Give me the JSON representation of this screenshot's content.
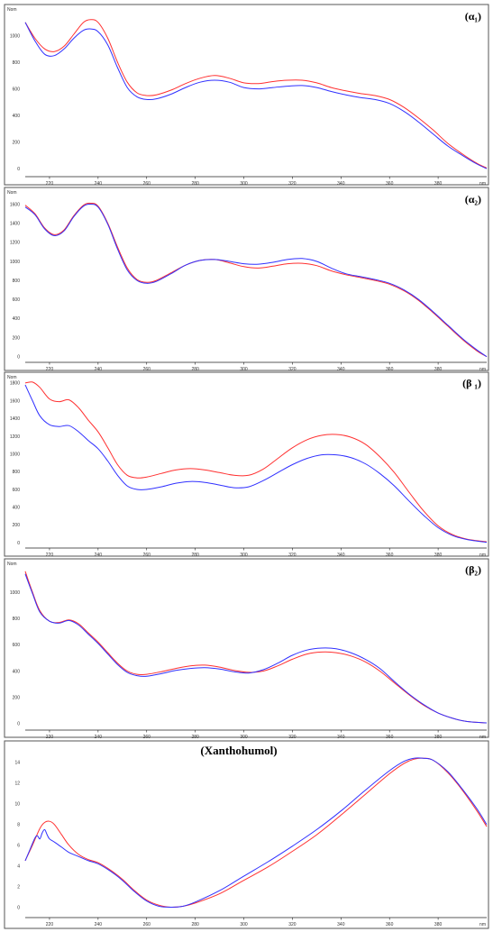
{
  "colors": {
    "series_a": "#ff3030",
    "series_b": "#3030ff",
    "frame": "#555555",
    "background": "#ffffff"
  },
  "chart_data": [
    {
      "type": "line",
      "title": "(α₁)",
      "ylabel": "Nom",
      "xlabel": "nm",
      "xlim": [
        210,
        400
      ],
      "ylim": [
        -60,
        1200
      ],
      "xticks": [
        220,
        240,
        260,
        280,
        300,
        320,
        340,
        360,
        380
      ],
      "yticks": [
        0,
        200,
        400,
        600,
        800,
        1000
      ],
      "grid": false,
      "series": [
        {
          "color": "#ff3030",
          "x": [
            210,
            214,
            218,
            222,
            226,
            230,
            234,
            237,
            240,
            244,
            248,
            252,
            256,
            260,
            264,
            270,
            276,
            282,
            288,
            294,
            300,
            306,
            312,
            318,
            324,
            330,
            336,
            342,
            348,
            354,
            360,
            366,
            372,
            378,
            384,
            390,
            396,
            400
          ],
          "y": [
            1100,
            980,
            900,
            880,
            920,
            1010,
            1100,
            1120,
            1100,
            980,
            800,
            650,
            570,
            550,
            555,
            590,
            640,
            680,
            700,
            680,
            645,
            640,
            655,
            665,
            665,
            645,
            610,
            585,
            565,
            550,
            520,
            460,
            380,
            290,
            190,
            110,
            40,
            5
          ]
        },
        {
          "color": "#3030ff",
          "x": [
            210,
            214,
            218,
            222,
            226,
            230,
            234,
            237,
            240,
            244,
            248,
            252,
            256,
            260,
            264,
            270,
            276,
            282,
            288,
            294,
            300,
            306,
            312,
            318,
            324,
            330,
            336,
            342,
            348,
            354,
            360,
            366,
            372,
            378,
            384,
            390,
            396,
            400
          ],
          "y": [
            1100,
            960,
            860,
            850,
            900,
            980,
            1040,
            1050,
            1030,
            930,
            760,
            610,
            540,
            520,
            525,
            560,
            610,
            650,
            665,
            650,
            610,
            600,
            610,
            620,
            625,
            610,
            580,
            555,
            535,
            520,
            490,
            430,
            350,
            260,
            170,
            100,
            35,
            0
          ]
        }
      ]
    },
    {
      "type": "line",
      "title": "(α₂)",
      "ylabel": "Nom",
      "xlabel": "nm",
      "xlim": [
        210,
        400
      ],
      "ylim": [
        -60,
        1700
      ],
      "xticks": [
        220,
        240,
        260,
        280,
        300,
        320,
        340,
        360,
        380
      ],
      "yticks": [
        0,
        200,
        400,
        600,
        800,
        1000,
        1200,
        1400,
        1600
      ],
      "grid": false,
      "series": [
        {
          "color": "#ff3030",
          "x": [
            210,
            214,
            218,
            222,
            226,
            230,
            234,
            237,
            240,
            244,
            248,
            252,
            256,
            260,
            264,
            270,
            276,
            282,
            288,
            294,
            300,
            306,
            312,
            318,
            324,
            330,
            336,
            342,
            348,
            354,
            360,
            366,
            372,
            378,
            384,
            390,
            396,
            400
          ],
          "y": [
            1590,
            1500,
            1350,
            1280,
            1330,
            1480,
            1590,
            1610,
            1580,
            1400,
            1150,
            930,
            810,
            780,
            800,
            880,
            960,
            1010,
            1020,
            985,
            945,
            930,
            950,
            975,
            980,
            955,
            900,
            860,
            830,
            800,
            760,
            690,
            590,
            460,
            320,
            180,
            60,
            0
          ]
        },
        {
          "color": "#3030ff",
          "x": [
            210,
            214,
            218,
            222,
            226,
            230,
            234,
            237,
            240,
            244,
            248,
            252,
            256,
            260,
            264,
            270,
            276,
            282,
            288,
            294,
            300,
            306,
            312,
            318,
            324,
            330,
            336,
            342,
            348,
            354,
            360,
            366,
            372,
            378,
            384,
            390,
            396,
            400
          ],
          "y": [
            1570,
            1490,
            1340,
            1270,
            1320,
            1470,
            1580,
            1600,
            1570,
            1390,
            1130,
            910,
            800,
            770,
            790,
            870,
            960,
            1010,
            1020,
            1000,
            975,
            970,
            990,
            1020,
            1030,
            1000,
            930,
            870,
            840,
            810,
            770,
            700,
            600,
            470,
            330,
            190,
            70,
            0
          ]
        }
      ]
    },
    {
      "type": "line",
      "title": "(β ₁)",
      "ylabel": "Nom",
      "xlabel": "nm",
      "xlim": [
        210,
        400
      ],
      "ylim": [
        -60,
        1850
      ],
      "xticks": [
        220,
        240,
        260,
        280,
        300,
        320,
        340,
        360,
        380
      ],
      "yticks": [
        0,
        200,
        400,
        600,
        800,
        1000,
        1200,
        1400,
        1600,
        1800
      ],
      "grid": false,
      "series": [
        {
          "color": "#ff3030",
          "x": [
            210,
            213,
            216,
            220,
            224,
            228,
            232,
            236,
            240,
            244,
            248,
            252,
            256,
            260,
            266,
            272,
            278,
            284,
            290,
            296,
            302,
            308,
            314,
            320,
            326,
            332,
            338,
            344,
            350,
            356,
            362,
            368,
            374,
            380,
            386,
            392,
            400
          ],
          "y": [
            1800,
            1810,
            1750,
            1620,
            1590,
            1610,
            1520,
            1380,
            1250,
            1070,
            880,
            760,
            730,
            740,
            780,
            820,
            835,
            820,
            790,
            760,
            760,
            830,
            950,
            1070,
            1160,
            1210,
            1220,
            1190,
            1110,
            970,
            790,
            570,
            360,
            190,
            90,
            40,
            10
          ]
        },
        {
          "color": "#3030ff",
          "x": [
            210,
            213,
            216,
            220,
            224,
            228,
            232,
            236,
            240,
            244,
            248,
            252,
            256,
            260,
            266,
            272,
            278,
            284,
            290,
            296,
            302,
            308,
            314,
            320,
            326,
            332,
            338,
            344,
            350,
            356,
            362,
            368,
            374,
            380,
            386,
            392,
            400
          ],
          "y": [
            1780,
            1600,
            1430,
            1330,
            1310,
            1320,
            1250,
            1150,
            1060,
            920,
            760,
            640,
            600,
            600,
            630,
            670,
            690,
            680,
            650,
            620,
            630,
            700,
            790,
            880,
            950,
            990,
            990,
            960,
            890,
            780,
            640,
            470,
            310,
            170,
            80,
            35,
            5
          ]
        }
      ]
    },
    {
      "type": "line",
      "title": "(β₂)",
      "ylabel": "Nom",
      "xlabel": "nm",
      "xlim": [
        210,
        400
      ],
      "ylim": [
        -50,
        1200
      ],
      "xticks": [
        220,
        240,
        260,
        280,
        300,
        320,
        340,
        360,
        380
      ],
      "yticks": [
        0,
        200,
        400,
        600,
        800,
        1000
      ],
      "grid": false,
      "series": [
        {
          "color": "#ff3030",
          "x": [
            210,
            213,
            216,
            220,
            224,
            228,
            232,
            236,
            240,
            244,
            248,
            252,
            256,
            260,
            266,
            272,
            278,
            284,
            290,
            296,
            302,
            308,
            314,
            320,
            326,
            332,
            338,
            344,
            350,
            356,
            362,
            368,
            374,
            380,
            386,
            392,
            400
          ],
          "y": [
            1160,
            1000,
            860,
            780,
            770,
            790,
            760,
            690,
            620,
            540,
            460,
            400,
            375,
            375,
            395,
            420,
            440,
            445,
            430,
            405,
            390,
            400,
            440,
            490,
            530,
            545,
            540,
            515,
            470,
            400,
            310,
            220,
            140,
            80,
            40,
            15,
            5
          ]
        },
        {
          "color": "#3030ff",
          "x": [
            210,
            213,
            216,
            220,
            224,
            228,
            232,
            236,
            240,
            244,
            248,
            252,
            256,
            260,
            266,
            272,
            278,
            284,
            290,
            296,
            302,
            308,
            314,
            320,
            326,
            332,
            338,
            344,
            350,
            356,
            362,
            368,
            374,
            380,
            386,
            392,
            400
          ],
          "y": [
            1140,
            990,
            850,
            780,
            765,
            785,
            750,
            680,
            610,
            530,
            450,
            390,
            365,
            360,
            380,
            405,
            420,
            425,
            415,
            395,
            385,
            410,
            460,
            520,
            560,
            575,
            570,
            540,
            490,
            420,
            320,
            225,
            145,
            80,
            40,
            15,
            5
          ]
        }
      ]
    },
    {
      "type": "line",
      "title": "(Xanthohumol)",
      "ylabel": "",
      "xlabel": "nm",
      "xlim": [
        210,
        400
      ],
      "ylim": [
        -1,
        15.2
      ],
      "xticks": [
        220,
        240,
        260,
        280,
        300,
        320,
        340,
        360,
        380
      ],
      "yticks": [
        0,
        2,
        4,
        6,
        8,
        10,
        12,
        14
      ],
      "grid": false,
      "series": [
        {
          "color": "#ff3030",
          "x": [
            210,
            213,
            216,
            218,
            220,
            222,
            225,
            228,
            232,
            236,
            240,
            245,
            250,
            255,
            260,
            265,
            270,
            275,
            280,
            290,
            300,
            310,
            320,
            330,
            340,
            350,
            360,
            366,
            370,
            374,
            378,
            384,
            390,
            396,
            400
          ],
          "y": [
            4.5,
            6.0,
            7.6,
            8.2,
            8.3,
            8.0,
            7.0,
            6.0,
            5.1,
            4.6,
            4.3,
            3.6,
            2.7,
            1.6,
            0.7,
            0.2,
            0.0,
            0.1,
            0.4,
            1.3,
            2.6,
            3.9,
            5.4,
            7.0,
            8.9,
            10.9,
            12.9,
            13.9,
            14.3,
            14.4,
            14.2,
            13.0,
            11.3,
            9.3,
            7.8
          ]
        },
        {
          "color": "#3030ff",
          "x": [
            210,
            212,
            214,
            215,
            216,
            217,
            218,
            219,
            220,
            222,
            225,
            228,
            232,
            236,
            240,
            245,
            250,
            255,
            260,
            265,
            270,
            275,
            280,
            290,
            300,
            310,
            320,
            330,
            340,
            350,
            360,
            366,
            370,
            374,
            378,
            384,
            390,
            396,
            400
          ],
          "y": [
            4.5,
            5.6,
            6.7,
            6.9,
            6.6,
            7.2,
            7.5,
            7.0,
            6.6,
            6.3,
            5.8,
            5.3,
            4.9,
            4.5,
            4.2,
            3.5,
            2.6,
            1.5,
            0.6,
            0.1,
            0.0,
            0.1,
            0.5,
            1.6,
            3.0,
            4.4,
            5.9,
            7.5,
            9.3,
            11.3,
            13.2,
            14.1,
            14.4,
            14.4,
            14.2,
            13.1,
            11.4,
            9.5,
            8.0
          ]
        }
      ]
    }
  ]
}
